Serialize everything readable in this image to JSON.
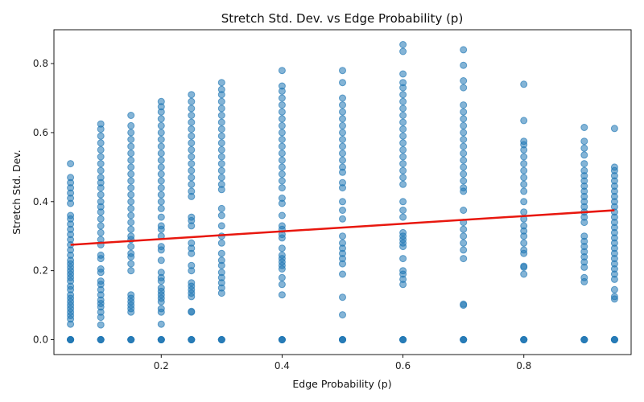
{
  "chart_data": {
    "type": "scatter",
    "title": "Stretch Std. Dev. vs Edge Probability (p)",
    "xlabel": "Edge Probability (p)",
    "ylabel": "Stretch Std. Dev.",
    "xlim": [
      0.0225,
      0.9775
    ],
    "ylim": [
      -0.043,
      0.898
    ],
    "xticks": [
      0.2,
      0.4,
      0.6,
      0.8
    ],
    "xtick_labels": [
      "0.2",
      "0.4",
      "0.6",
      "0.8"
    ],
    "yticks": [
      0.0,
      0.2,
      0.4,
      0.6,
      0.8
    ],
    "ytick_labels": [
      "0.0",
      "0.2",
      "0.4",
      "0.6",
      "0.8"
    ],
    "grid": false,
    "legend": "none",
    "point_color": "#1f77b4",
    "point_alpha": 0.55,
    "trend_color": "#e8170e",
    "trend_line": {
      "x": [
        0.05,
        0.95
      ],
      "y": [
        0.275,
        0.375
      ]
    },
    "columns": [
      {
        "x": 0.05,
        "y": [
          0,
          0,
          0,
          0,
          0,
          0.045,
          0.06,
          0.07,
          0.08,
          0.09,
          0.1,
          0.11,
          0.12,
          0.13,
          0.145,
          0.155,
          0.17,
          0.18,
          0.19,
          0.2,
          0.21,
          0.22,
          0.23,
          0.245,
          0.26,
          0.275,
          0.29,
          0.305,
          0.32,
          0.335,
          0.35,
          0.36,
          0.395,
          0.41,
          0.425,
          0.44,
          0.455,
          0.47,
          0.51
        ]
      },
      {
        "x": 0.1,
        "y": [
          0,
          0,
          0,
          0,
          0.043,
          0.065,
          0.08,
          0.095,
          0.105,
          0.115,
          0.13,
          0.145,
          0.16,
          0.17,
          0.195,
          0.205,
          0.235,
          0.245,
          0.275,
          0.29,
          0.31,
          0.33,
          0.35,
          0.37,
          0.385,
          0.4,
          0.42,
          0.44,
          0.455,
          0.47,
          0.49,
          0.51,
          0.53,
          0.55,
          0.57,
          0.59,
          0.61,
          0.625
        ]
      },
      {
        "x": 0.15,
        "y": [
          0,
          0,
          0,
          0,
          0.08,
          0.09,
          0.1,
          0.11,
          0.12,
          0.13,
          0.2,
          0.22,
          0.24,
          0.25,
          0.27,
          0.29,
          0.3,
          0.32,
          0.34,
          0.36,
          0.38,
          0.4,
          0.42,
          0.44,
          0.46,
          0.48,
          0.5,
          0.52,
          0.54,
          0.56,
          0.58,
          0.6,
          0.62,
          0.65
        ]
      },
      {
        "x": 0.2,
        "y": [
          0,
          0,
          0,
          0,
          0.045,
          0.08,
          0.09,
          0.11,
          0.12,
          0.13,
          0.14,
          0.15,
          0.17,
          0.18,
          0.195,
          0.23,
          0.26,
          0.27,
          0.3,
          0.32,
          0.33,
          0.355,
          0.38,
          0.4,
          0.42,
          0.44,
          0.46,
          0.48,
          0.5,
          0.52,
          0.54,
          0.56,
          0.58,
          0.6,
          0.62,
          0.64,
          0.66,
          0.675,
          0.69
        ]
      },
      {
        "x": 0.25,
        "y": [
          0,
          0,
          0,
          0,
          0.08,
          0.082,
          0.125,
          0.135,
          0.145,
          0.155,
          0.165,
          0.2,
          0.215,
          0.25,
          0.265,
          0.28,
          0.33,
          0.345,
          0.355,
          0.415,
          0.43,
          0.45,
          0.47,
          0.49,
          0.51,
          0.53,
          0.55,
          0.57,
          0.59,
          0.61,
          0.63,
          0.65,
          0.67,
          0.69,
          0.71
        ]
      },
      {
        "x": 0.3,
        "y": [
          0,
          0,
          0,
          0,
          0.135,
          0.15,
          0.165,
          0.18,
          0.195,
          0.215,
          0.23,
          0.25,
          0.28,
          0.3,
          0.33,
          0.36,
          0.38,
          0.435,
          0.45,
          0.47,
          0.49,
          0.51,
          0.53,
          0.55,
          0.57,
          0.59,
          0.61,
          0.63,
          0.65,
          0.67,
          0.69,
          0.71,
          0.725,
          0.745
        ]
      },
      {
        "x": 0.4,
        "y": [
          0,
          0,
          0,
          0,
          0.13,
          0.16,
          0.18,
          0.205,
          0.215,
          0.225,
          0.235,
          0.245,
          0.265,
          0.295,
          0.305,
          0.32,
          0.33,
          0.36,
          0.395,
          0.41,
          0.44,
          0.46,
          0.48,
          0.5,
          0.52,
          0.54,
          0.56,
          0.58,
          0.6,
          0.62,
          0.64,
          0.66,
          0.68,
          0.7,
          0.72,
          0.735,
          0.78
        ]
      },
      {
        "x": 0.5,
        "y": [
          0,
          0,
          0,
          0,
          0.072,
          0.123,
          0.19,
          0.22,
          0.235,
          0.25,
          0.265,
          0.28,
          0.3,
          0.35,
          0.375,
          0.4,
          0.44,
          0.455,
          0.485,
          0.5,
          0.52,
          0.54,
          0.56,
          0.58,
          0.6,
          0.62,
          0.64,
          0.66,
          0.68,
          0.7,
          0.745,
          0.78
        ]
      },
      {
        "x": 0.6,
        "y": [
          0,
          0,
          0,
          0,
          0.16,
          0.175,
          0.19,
          0.2,
          0.235,
          0.27,
          0.28,
          0.29,
          0.3,
          0.31,
          0.355,
          0.375,
          0.4,
          0.45,
          0.47,
          0.49,
          0.51,
          0.53,
          0.55,
          0.57,
          0.59,
          0.61,
          0.63,
          0.65,
          0.67,
          0.69,
          0.71,
          0.73,
          0.745,
          0.77,
          0.835,
          0.855
        ]
      },
      {
        "x": 0.7,
        "y": [
          0,
          0,
          0,
          0,
          0.1,
          0.103,
          0.235,
          0.26,
          0.28,
          0.3,
          0.32,
          0.34,
          0.375,
          0.43,
          0.44,
          0.46,
          0.48,
          0.5,
          0.52,
          0.54,
          0.56,
          0.58,
          0.6,
          0.62,
          0.64,
          0.66,
          0.68,
          0.73,
          0.75,
          0.795,
          0.84
        ]
      },
      {
        "x": 0.8,
        "y": [
          0,
          0,
          0,
          0,
          0.19,
          0.21,
          0.213,
          0.25,
          0.26,
          0.28,
          0.3,
          0.315,
          0.33,
          0.35,
          0.37,
          0.4,
          0.43,
          0.45,
          0.47,
          0.49,
          0.51,
          0.53,
          0.55,
          0.565,
          0.575,
          0.635,
          0.74
        ]
      },
      {
        "x": 0.9,
        "y": [
          0,
          0,
          0,
          0,
          0.168,
          0.18,
          0.21,
          0.225,
          0.24,
          0.255,
          0.27,
          0.285,
          0.3,
          0.34,
          0.355,
          0.37,
          0.385,
          0.4,
          0.415,
          0.43,
          0.445,
          0.46,
          0.475,
          0.49,
          0.51,
          0.535,
          0.555,
          0.575,
          0.615
        ]
      },
      {
        "x": 0.95,
        "y": [
          0,
          0,
          0,
          0,
          0.118,
          0.125,
          0.145,
          0.175,
          0.19,
          0.205,
          0.22,
          0.235,
          0.25,
          0.265,
          0.28,
          0.295,
          0.31,
          0.325,
          0.34,
          0.355,
          0.37,
          0.385,
          0.4,
          0.415,
          0.43,
          0.445,
          0.46,
          0.475,
          0.49,
          0.5,
          0.612
        ]
      }
    ]
  }
}
